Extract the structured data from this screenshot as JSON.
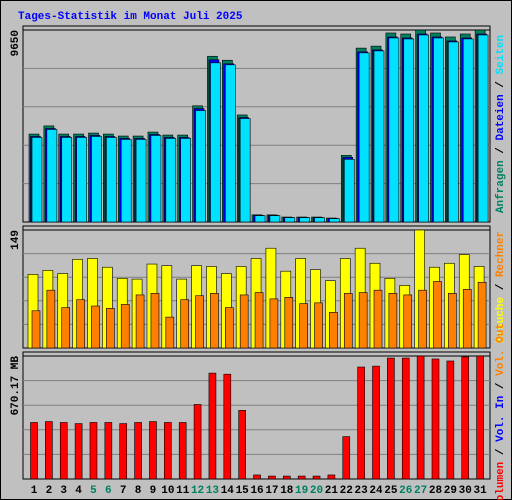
{
  "title": "Tages-Statistik im Monat Juli 2025",
  "legend_separator": " / ",
  "chart_data": [
    {
      "type": "bar",
      "ylim": [
        0,
        9650
      ],
      "yticks": [
        9650
      ],
      "series": [
        {
          "name": "Anfragen",
          "color": "#008060",
          "values": [
            4420,
            4830,
            4420,
            4420,
            4470,
            4420,
            4320,
            4320,
            4520,
            4370,
            4370,
            5840,
            8330,
            8130,
            5380,
            360,
            360,
            250,
            250,
            250,
            200,
            3350,
            8740,
            8840,
            9500,
            9450,
            9650,
            9500,
            9300,
            9450,
            9650
          ]
        },
        {
          "name": "Dateien",
          "color": "#0000ff",
          "values": [
            4300,
            4700,
            4300,
            4300,
            4350,
            4300,
            4200,
            4200,
            4400,
            4250,
            4250,
            5700,
            8150,
            7950,
            5250,
            330,
            330,
            230,
            230,
            230,
            180,
            3250,
            8550,
            8650,
            9300,
            9250,
            9450,
            9300,
            9100,
            9250,
            9450
          ]
        },
        {
          "name": "Seiten",
          "color": "#00e0ff",
          "values": [
            4250,
            4650,
            4250,
            4250,
            4300,
            4250,
            4150,
            4150,
            4350,
            4200,
            4200,
            5600,
            8000,
            7900,
            5200,
            320,
            320,
            220,
            220,
            220,
            170,
            3150,
            8500,
            8600,
            9250,
            9200,
            9400,
            9250,
            9050,
            9200,
            9400
          ]
        }
      ]
    },
    {
      "type": "bar",
      "ylim": [
        0,
        149
      ],
      "yticks": [
        149
      ],
      "series": [
        {
          "name": "Besuche",
          "color": "#ffff00",
          "values": [
            93,
            98,
            94,
            112,
            113,
            102,
            88,
            87,
            106,
            104,
            87,
            104,
            103,
            94,
            103,
            113,
            126,
            97,
            113,
            99,
            85,
            113,
            126,
            107,
            88,
            79,
            149,
            102,
            107,
            118,
            103
          ]
        },
        {
          "name": "Rechner",
          "color": "#ff8000",
          "values": [
            47,
            73,
            51,
            61,
            53,
            50,
            55,
            67,
            69,
            39,
            61,
            66,
            69,
            51,
            67,
            70,
            62,
            64,
            56,
            57,
            45,
            69,
            70,
            73,
            69,
            67,
            73,
            84,
            69,
            74,
            83
          ]
        }
      ]
    },
    {
      "type": "bar",
      "ylim": [
        0,
        670.17
      ],
      "yticks": [
        {
          "value": 670.17,
          "label": "670.17 MB"
        }
      ],
      "categories": [
        "1",
        "2",
        "3",
        "4",
        "5",
        "6",
        "7",
        "8",
        "9",
        "10",
        "11",
        "12",
        "13",
        "14",
        "15",
        "16",
        "17",
        "18",
        "19",
        "20",
        "21",
        "22",
        "23",
        "24",
        "25",
        "26",
        "27",
        "28",
        "29",
        "30",
        "31"
      ],
      "category_colors": [
        "#000000",
        "#000000",
        "#000000",
        "#000000",
        "#008060",
        "#008060",
        "#000000",
        "#000000",
        "#000000",
        "#000000",
        "#000000",
        "#008060",
        "#008060",
        "#000000",
        "#000000",
        "#000000",
        "#000000",
        "#000000",
        "#008060",
        "#008060",
        "#000000",
        "#000000",
        "#000000",
        "#000000",
        "#000000",
        "#008060",
        "#008060",
        "#000000",
        "#000000",
        "#000000",
        "#000000"
      ],
      "series": [
        {
          "name": "Volumen",
          "color": "#ff0000",
          "values": [
            308,
            313,
            308,
            302,
            308,
            308,
            302,
            308,
            313,
            308,
            308,
            406,
            577,
            571,
            374,
            22,
            16,
            16,
            16,
            16,
            22,
            231,
            610,
            615,
            659,
            659,
            670.17,
            654,
            643,
            665,
            670.17
          ]
        }
      ],
      "legend_extra": [
        {
          "name": "Vol. In",
          "color": "#0000ff"
        },
        {
          "name": "Vol. Out",
          "color": "#ff8000"
        }
      ]
    }
  ]
}
